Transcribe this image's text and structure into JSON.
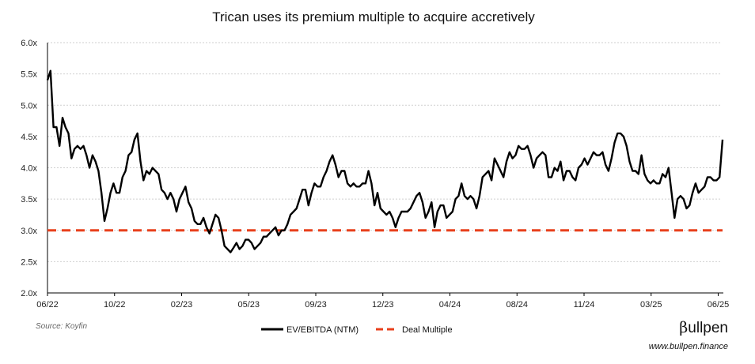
{
  "chart_data": {
    "type": "line",
    "title": "Trican uses its premium multiple to acquire accretively",
    "xlabel": "",
    "ylabel": "",
    "ylim": [
      2.0,
      6.0
    ],
    "yticks": [
      "2.0x",
      "2.5x",
      "3.0x",
      "3.5x",
      "4.0x",
      "4.5x",
      "5.0x",
      "5.5x",
      "6.0x"
    ],
    "xticks": [
      "06/22",
      "10/22",
      "02/23",
      "05/23",
      "09/23",
      "12/23",
      "04/24",
      "08/24",
      "11/24",
      "03/25",
      "06/25"
    ],
    "x_range": [
      "06/22",
      "06/25"
    ],
    "grid": true,
    "legend_position": "bottom",
    "series": [
      {
        "name": "EV/EBITDA (NTM)",
        "color": "#000000",
        "style": "solid",
        "values": [
          5.4,
          5.55,
          4.65,
          4.65,
          4.35,
          4.8,
          4.65,
          4.55,
          4.15,
          4.3,
          4.35,
          4.3,
          4.35,
          4.2,
          4.0,
          4.2,
          4.1,
          3.95,
          3.6,
          3.15,
          3.35,
          3.6,
          3.75,
          3.6,
          3.6,
          3.85,
          3.95,
          4.2,
          4.25,
          4.45,
          4.55,
          4.1,
          3.8,
          3.95,
          3.9,
          4.0,
          3.95,
          3.9,
          3.65,
          3.6,
          3.5,
          3.6,
          3.5,
          3.3,
          3.5,
          3.6,
          3.7,
          3.45,
          3.35,
          3.15,
          3.1,
          3.1,
          3.2,
          3.05,
          2.95,
          3.1,
          3.25,
          3.2,
          3.0,
          2.75,
          2.7,
          2.65,
          2.72,
          2.8,
          2.7,
          2.75,
          2.85,
          2.85,
          2.8,
          2.7,
          2.75,
          2.8,
          2.9,
          2.9,
          2.95,
          3.0,
          3.05,
          2.92,
          3.0,
          3.0,
          3.1,
          3.25,
          3.3,
          3.35,
          3.5,
          3.65,
          3.65,
          3.4,
          3.6,
          3.75,
          3.7,
          3.7,
          3.85,
          3.95,
          4.1,
          4.2,
          4.05,
          3.85,
          3.95,
          3.95,
          3.75,
          3.7,
          3.75,
          3.7,
          3.7,
          3.75,
          3.75,
          3.95,
          3.75,
          3.4,
          3.6,
          3.35,
          3.3,
          3.25,
          3.3,
          3.2,
          3.05,
          3.2,
          3.3,
          3.3,
          3.3,
          3.35,
          3.45,
          3.55,
          3.6,
          3.45,
          3.2,
          3.3,
          3.45,
          3.05,
          3.3,
          3.4,
          3.4,
          3.2,
          3.25,
          3.3,
          3.5,
          3.55,
          3.75,
          3.55,
          3.5,
          3.55,
          3.5,
          3.35,
          3.55,
          3.85,
          3.9,
          3.95,
          3.8,
          4.15,
          4.05,
          3.95,
          3.85,
          4.1,
          4.25,
          4.15,
          4.2,
          4.35,
          4.3,
          4.3,
          4.35,
          4.2,
          4.0,
          4.15,
          4.2,
          4.25,
          4.2,
          3.85,
          3.85,
          4.0,
          3.95,
          4.1,
          3.8,
          3.95,
          3.95,
          3.85,
          3.8,
          4.0,
          4.05,
          4.15,
          4.05,
          4.15,
          4.25,
          4.2,
          4.2,
          4.25,
          4.05,
          3.95,
          4.15,
          4.4,
          4.55,
          4.55,
          4.5,
          4.35,
          4.1,
          3.95,
          3.95,
          3.9,
          4.2,
          3.9,
          3.8,
          3.75,
          3.8,
          3.75,
          3.75,
          3.9,
          3.85,
          4.0,
          3.6,
          3.2,
          3.5,
          3.55,
          3.5,
          3.35,
          3.4,
          3.6,
          3.75,
          3.6,
          3.65,
          3.7,
          3.85,
          3.85,
          3.8,
          3.8,
          3.85,
          4.45
        ]
      },
      {
        "name": "Deal Multiple",
        "color": "#e8401c",
        "style": "dashed",
        "value": 3.0
      }
    ]
  },
  "footer": {
    "source": "Source: Koyfin",
    "logo_text": "Bullpen",
    "website": "www.bullpen.finance"
  }
}
